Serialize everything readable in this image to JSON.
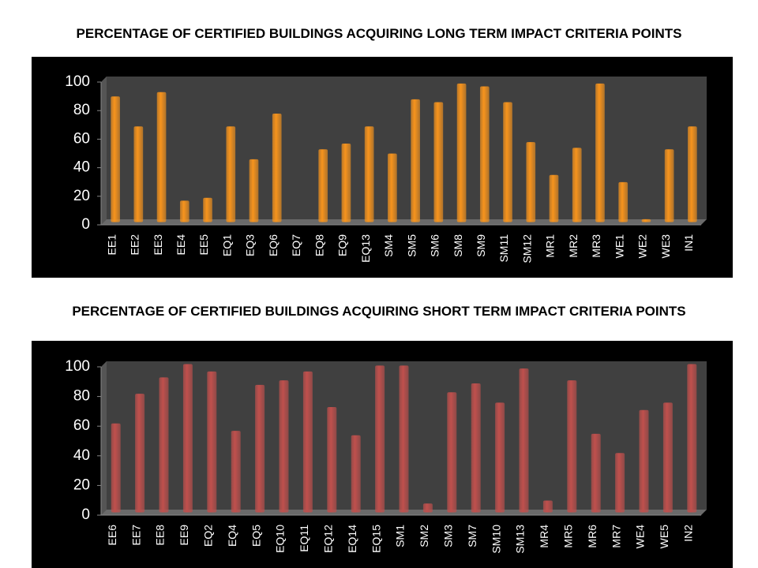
{
  "chart_data": [
    {
      "type": "bar",
      "title": "PERCENTAGE OF CERTIFIED BUILDINGS ACQUIRING LONG TERM IMPACT CRITERIA POINTS",
      "categories": [
        "EE1",
        "EE2",
        "EE3",
        "EE4",
        "EE5",
        "EQ1",
        "EQ3",
        "EQ6",
        "EQ7",
        "EQ8",
        "EQ9",
        "EQ13",
        "SM4",
        "SM5",
        "SM6",
        "SM8",
        "SM9",
        "SM11",
        "SM12",
        "MR1",
        "MR2",
        "MR3",
        "WE1",
        "WE2",
        "WE3",
        "IN1"
      ],
      "values": [
        88,
        67,
        91,
        15,
        17,
        67,
        44,
        76,
        0,
        51,
        55,
        67,
        48,
        86,
        84,
        97,
        95,
        84,
        56,
        33,
        52,
        97,
        28,
        2,
        51,
        67
      ],
      "color": "#f7941d",
      "ylim": [
        0,
        100
      ],
      "yticks": [
        0,
        20,
        40,
        60,
        80,
        100
      ],
      "grid": false
    },
    {
      "type": "bar",
      "title": "PERCENTAGE OF CERTIFIED BUILDINGS ACQUIRING SHORT TERM IMPACT CRITERIA POINTS",
      "categories": [
        "EE6",
        "EE7",
        "EE8",
        "EE9",
        "EQ2",
        "EQ4",
        "EQ5",
        "EQ10",
        "EQ11",
        "EQ12",
        "EQ14",
        "EQ15",
        "SM1",
        "SM2",
        "SM3",
        "SM7",
        "SM10",
        "SM13",
        "MR4",
        "MR5",
        "MR6",
        "MR7",
        "WE4",
        "WE5",
        "IN2"
      ],
      "values": [
        60,
        80,
        91,
        100,
        95,
        55,
        86,
        89,
        95,
        71,
        52,
        99,
        99,
        6,
        81,
        87,
        74,
        97,
        8,
        89,
        53,
        40,
        69,
        74,
        100
      ],
      "color": "#c0504d",
      "ylim": [
        0,
        100
      ],
      "yticks": [
        0,
        20,
        40,
        60,
        80,
        100
      ],
      "grid": false
    }
  ]
}
